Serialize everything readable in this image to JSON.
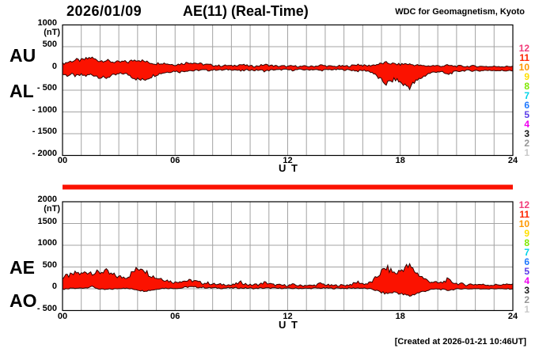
{
  "header": {
    "date": "2026/01/09",
    "title": "AE(11) (Real-Time)",
    "org": "WDC for Geomagnetism, Kyoto"
  },
  "footer": {
    "created": "[Created at 2026-01-21 10:46UT]"
  },
  "colors": {
    "fill": "#fb1200",
    "stroke": "#2b0400",
    "grid": "#a3a3a3",
    "frame": "#000000",
    "bar": "#fb1200",
    "text": "#000000"
  },
  "stations": [
    {
      "label": "12",
      "color": "#f23b78"
    },
    {
      "label": "11",
      "color": "#ff2400"
    },
    {
      "label": "10",
      "color": "#ff9800"
    },
    {
      "label": "9",
      "color": "#ffdf00"
    },
    {
      "label": "8",
      "color": "#7fe800"
    },
    {
      "label": "7",
      "color": "#00d4e8"
    },
    {
      "label": "6",
      "color": "#1e78ff"
    },
    {
      "label": "5",
      "color": "#5a3ce8"
    },
    {
      "label": "4",
      "color": "#f000f0"
    },
    {
      "label": "3",
      "color": "#1a1a1a"
    },
    {
      "label": "2",
      "color": "#969696"
    },
    {
      "label": "1",
      "color": "#c9c9c9"
    }
  ],
  "panels": [
    {
      "series_labels": [
        "AU",
        "AL"
      ],
      "unit": "(nT)",
      "yticks": [
        {
          "label": "1000",
          "value": 1000
        },
        {
          "label": "500",
          "value": 500
        },
        {
          "label": "0",
          "value": 0
        },
        {
          "label": "- 500",
          "value": -500
        },
        {
          "label": "- 1000",
          "value": -1000
        },
        {
          "label": "- 1500",
          "value": -1500
        },
        {
          "label": "- 2000",
          "value": -2000
        }
      ],
      "xticks": [
        {
          "label": "00",
          "value": 0
        },
        {
          "label": "06",
          "value": 6
        },
        {
          "label": "12",
          "value": 12
        },
        {
          "label": "18",
          "value": 18
        },
        {
          "label": "24",
          "value": 24
        }
      ],
      "xlabel": "U T"
    },
    {
      "series_labels": [
        "AE",
        "AO"
      ],
      "unit": "(nT)",
      "yticks": [
        {
          "label": "2000",
          "value": 2000
        },
        {
          "label": "1500",
          "value": 1500
        },
        {
          "label": "1000",
          "value": 1000
        },
        {
          "label": "500",
          "value": 500
        },
        {
          "label": "0",
          "value": 0
        },
        {
          "label": "- 500",
          "value": -500
        }
      ],
      "xticks": [
        {
          "label": "00",
          "value": 0
        },
        {
          "label": "06",
          "value": 6
        },
        {
          "label": "12",
          "value": 12
        },
        {
          "label": "18",
          "value": 18
        },
        {
          "label": "24",
          "value": 24
        }
      ],
      "xlabel": "U T"
    }
  ],
  "coverage_bar": {
    "start_hour": 0,
    "end_hour": 24
  },
  "chart_data": [
    {
      "type": "area",
      "x_start_hour": 0,
      "x_step_hours": 0.25,
      "xlim": [
        0,
        24
      ],
      "ylim": [
        -2000,
        1000
      ],
      "xlabel": "U T",
      "ylabel": "nT",
      "grid": true,
      "series": [
        {
          "name": "AU",
          "values": [
            110,
            140,
            170,
            190,
            185,
            215,
            250,
            205,
            175,
            190,
            160,
            150,
            140,
            155,
            145,
            185,
            205,
            175,
            145,
            125,
            110,
            130,
            115,
            95,
            85,
            100,
            120,
            140,
            130,
            110,
            95,
            85,
            75,
            65,
            60,
            70,
            55,
            75,
            90,
            70,
            55,
            50,
            65,
            85,
            75,
            60,
            50,
            55,
            45,
            55,
            50,
            45,
            50,
            45,
            55,
            75,
            60,
            50,
            45,
            55,
            50,
            55,
            70,
            95,
            70,
            60,
            75,
            90,
            110,
            130,
            115,
            100,
            90,
            105,
            95,
            80,
            70,
            60,
            55,
            65,
            60,
            55,
            70,
            60,
            50,
            55,
            45,
            50,
            55,
            45,
            50,
            40,
            45,
            50,
            40,
            45,
            55
          ]
        },
        {
          "name": "AL",
          "values": [
            -130,
            -160,
            -140,
            -180,
            -150,
            -170,
            -140,
            -160,
            -200,
            -230,
            -180,
            -160,
            -130,
            -115,
            -140,
            -200,
            -250,
            -270,
            -230,
            -180,
            -140,
            -110,
            -90,
            -75,
            -60,
            -80,
            -60,
            -45,
            -55,
            -40,
            -35,
            -45,
            -35,
            -30,
            -40,
            -30,
            -25,
            -35,
            -60,
            -40,
            -30,
            -45,
            -35,
            -60,
            -45,
            -30,
            -35,
            -25,
            -30,
            -40,
            -30,
            -25,
            -35,
            -25,
            -30,
            -45,
            -35,
            -25,
            -30,
            -25,
            -30,
            -35,
            -45,
            -60,
            -45,
            -55,
            -90,
            -180,
            -280,
            -350,
            -300,
            -250,
            -320,
            -390,
            -420,
            -330,
            -250,
            -180,
            -120,
            -90,
            -70,
            -90,
            -140,
            -100,
            -70,
            -55,
            -45,
            -55,
            -45,
            -55,
            -40,
            -50,
            -40,
            -45,
            -55,
            -45,
            -60
          ]
        }
      ]
    },
    {
      "type": "area",
      "x_start_hour": 0,
      "x_step_hours": 0.25,
      "xlim": [
        0,
        24
      ],
      "ylim": [
        -500,
        2000
      ],
      "xlabel": "U T",
      "ylabel": "nT",
      "grid": true,
      "series": [
        {
          "name": "AE",
          "values": [
            240,
            300,
            310,
            370,
            335,
            385,
            390,
            365,
            375,
            420,
            340,
            310,
            270,
            270,
            285,
            385,
            455,
            500,
            375,
            305,
            250,
            240,
            205,
            170,
            145,
            180,
            180,
            185,
            185,
            150,
            130,
            130,
            110,
            95,
            100,
            100,
            80,
            110,
            150,
            110,
            85,
            95,
            100,
            145,
            120,
            90,
            85,
            80,
            75,
            95,
            80,
            70,
            85,
            70,
            85,
            120,
            95,
            75,
            75,
            80,
            80,
            90,
            115,
            155,
            115,
            115,
            165,
            270,
            390,
            480,
            415,
            350,
            410,
            495,
            515,
            410,
            320,
            240,
            175,
            155,
            130,
            145,
            210,
            160,
            120,
            110,
            90,
            105,
            100,
            100,
            90,
            90,
            85,
            95,
            95,
            90,
            115
          ]
        },
        {
          "name": "AO",
          "values": [
            -10,
            -10,
            15,
            5,
            18,
            23,
            55,
            23,
            -13,
            -20,
            -10,
            -5,
            5,
            20,
            3,
            -8,
            -23,
            -48,
            -43,
            -28,
            -15,
            10,
            13,
            10,
            13,
            10,
            30,
            48,
            38,
            35,
            30,
            20,
            20,
            18,
            10,
            20,
            15,
            20,
            15,
            15,
            13,
            3,
            15,
            13,
            15,
            15,
            8,
            15,
            8,
            8,
            10,
            10,
            8,
            10,
            13,
            15,
            13,
            13,
            8,
            15,
            10,
            10,
            13,
            18,
            13,
            3,
            -8,
            -45,
            -85,
            -110,
            -93,
            -75,
            -115,
            -143,
            -163,
            -125,
            -90,
            -60,
            -33,
            -13,
            -5,
            -18,
            -35,
            -20,
            -10,
            0,
            0,
            -3,
            5,
            -5,
            5,
            -5,
            3,
            3,
            -8,
            0,
            -3
          ]
        }
      ]
    }
  ]
}
